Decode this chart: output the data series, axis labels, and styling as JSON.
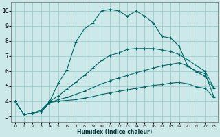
{
  "xlabel": "Humidex (Indice chaleur)",
  "bg_color": "#cce8e8",
  "grid_color": "#99cccc",
  "line_color": "#006666",
  "xlim": [
    -0.5,
    23.5
  ],
  "ylim": [
    2.6,
    10.6
  ],
  "xticks": [
    0,
    1,
    2,
    3,
    4,
    5,
    6,
    7,
    8,
    9,
    10,
    11,
    12,
    13,
    14,
    15,
    16,
    17,
    18,
    19,
    20,
    21,
    22,
    23
  ],
  "yticks": [
    3,
    4,
    5,
    6,
    7,
    8,
    9,
    10
  ],
  "curves": [
    {
      "x": [
        0,
        1,
        2,
        3,
        4,
        5,
        6,
        7,
        8,
        9,
        10,
        11,
        12,
        13,
        14,
        15,
        16,
        17,
        18,
        19,
        20,
        21,
        22,
        23
      ],
      "y": [
        4.0,
        3.1,
        3.2,
        3.3,
        4.0,
        5.2,
        6.1,
        7.9,
        8.8,
        9.2,
        10.0,
        10.1,
        10.0,
        9.65,
        10.0,
        9.65,
        9.2,
        8.3,
        8.2,
        7.65,
        6.3,
        6.0,
        5.85,
        4.3
      ]
    },
    {
      "x": [
        0,
        1,
        2,
        3,
        4,
        5,
        6,
        7,
        8,
        9,
        10,
        11,
        12,
        13,
        14,
        15,
        16,
        17,
        18,
        19,
        20,
        21,
        22,
        23
      ],
      "y": [
        4.0,
        3.1,
        3.2,
        3.4,
        4.0,
        4.35,
        4.8,
        5.25,
        5.7,
        6.2,
        6.7,
        7.05,
        7.2,
        7.45,
        7.5,
        7.5,
        7.5,
        7.4,
        7.3,
        7.1,
        6.75,
        6.35,
        6.0,
        4.9
      ]
    },
    {
      "x": [
        0,
        1,
        2,
        3,
        4,
        5,
        6,
        7,
        8,
        9,
        10,
        11,
        12,
        13,
        14,
        15,
        16,
        17,
        18,
        19,
        20,
        21,
        22,
        23
      ],
      "y": [
        4.0,
        3.1,
        3.2,
        3.3,
        3.9,
        4.1,
        4.25,
        4.45,
        4.65,
        4.9,
        5.15,
        5.35,
        5.55,
        5.7,
        5.9,
        6.05,
        6.2,
        6.35,
        6.45,
        6.55,
        6.35,
        5.95,
        5.65,
        4.85
      ]
    },
    {
      "x": [
        0,
        1,
        2,
        3,
        4,
        5,
        6,
        7,
        8,
        9,
        10,
        11,
        12,
        13,
        14,
        15,
        16,
        17,
        18,
        19,
        20,
        21,
        22,
        23
      ],
      "y": [
        4.0,
        3.1,
        3.2,
        3.3,
        3.9,
        4.0,
        4.05,
        4.1,
        4.2,
        4.3,
        4.45,
        4.55,
        4.65,
        4.75,
        4.85,
        4.95,
        5.05,
        5.1,
        5.2,
        5.25,
        5.15,
        4.95,
        4.85,
        4.25
      ]
    }
  ]
}
